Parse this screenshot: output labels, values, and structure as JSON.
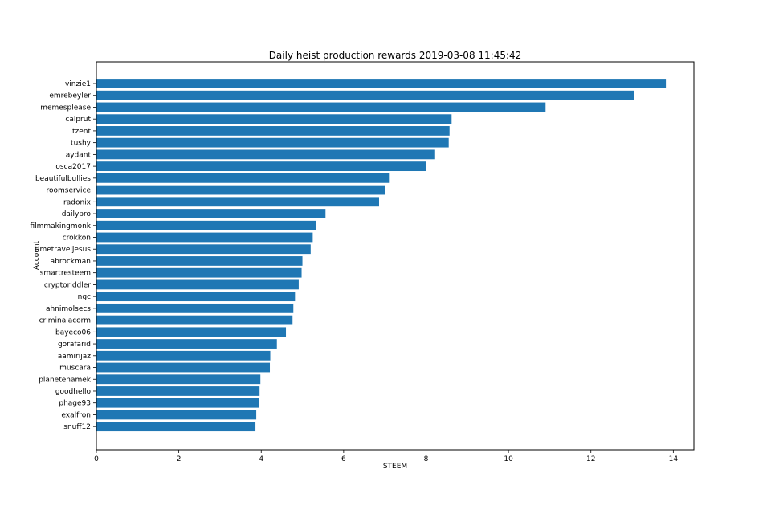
{
  "chart_data": {
    "type": "bar",
    "orientation": "horizontal",
    "title": "Daily heist production rewards 2019-03-08 11:45:42",
    "xlabel": "STEEM",
    "ylabel": "Account",
    "xlim": [
      0,
      14.5
    ],
    "xticks": [
      0,
      2,
      4,
      6,
      8,
      10,
      12,
      14
    ],
    "grid": false,
    "bar_color": "#1f77b4",
    "categories": [
      "vinzie1",
      "emrebeyler",
      "memesplease",
      "calprut",
      "tzent",
      "tushy",
      "aydant",
      "osca2017",
      "beautifulbullies",
      "roomservice",
      "radonix",
      "dailypro",
      "filmmakingmonk",
      "crokkon",
      "timetraveljesus",
      "abrockman",
      "smartresteem",
      "cryptoriddler",
      "ngc",
      "ahnimolsecs",
      "criminalacorm",
      "bayeco06",
      "gorafarid",
      "aamirijaz",
      "muscara",
      "planetenamek",
      "goodhello",
      "phage93",
      "exalfron",
      "snuff12"
    ],
    "values": [
      13.82,
      13.05,
      10.9,
      8.62,
      8.57,
      8.55,
      8.22,
      8.0,
      7.1,
      7.0,
      6.86,
      5.56,
      5.34,
      5.25,
      5.2,
      5.0,
      4.98,
      4.91,
      4.82,
      4.78,
      4.76,
      4.6,
      4.38,
      4.22,
      4.21,
      3.98,
      3.96,
      3.95,
      3.88,
      3.86
    ]
  }
}
